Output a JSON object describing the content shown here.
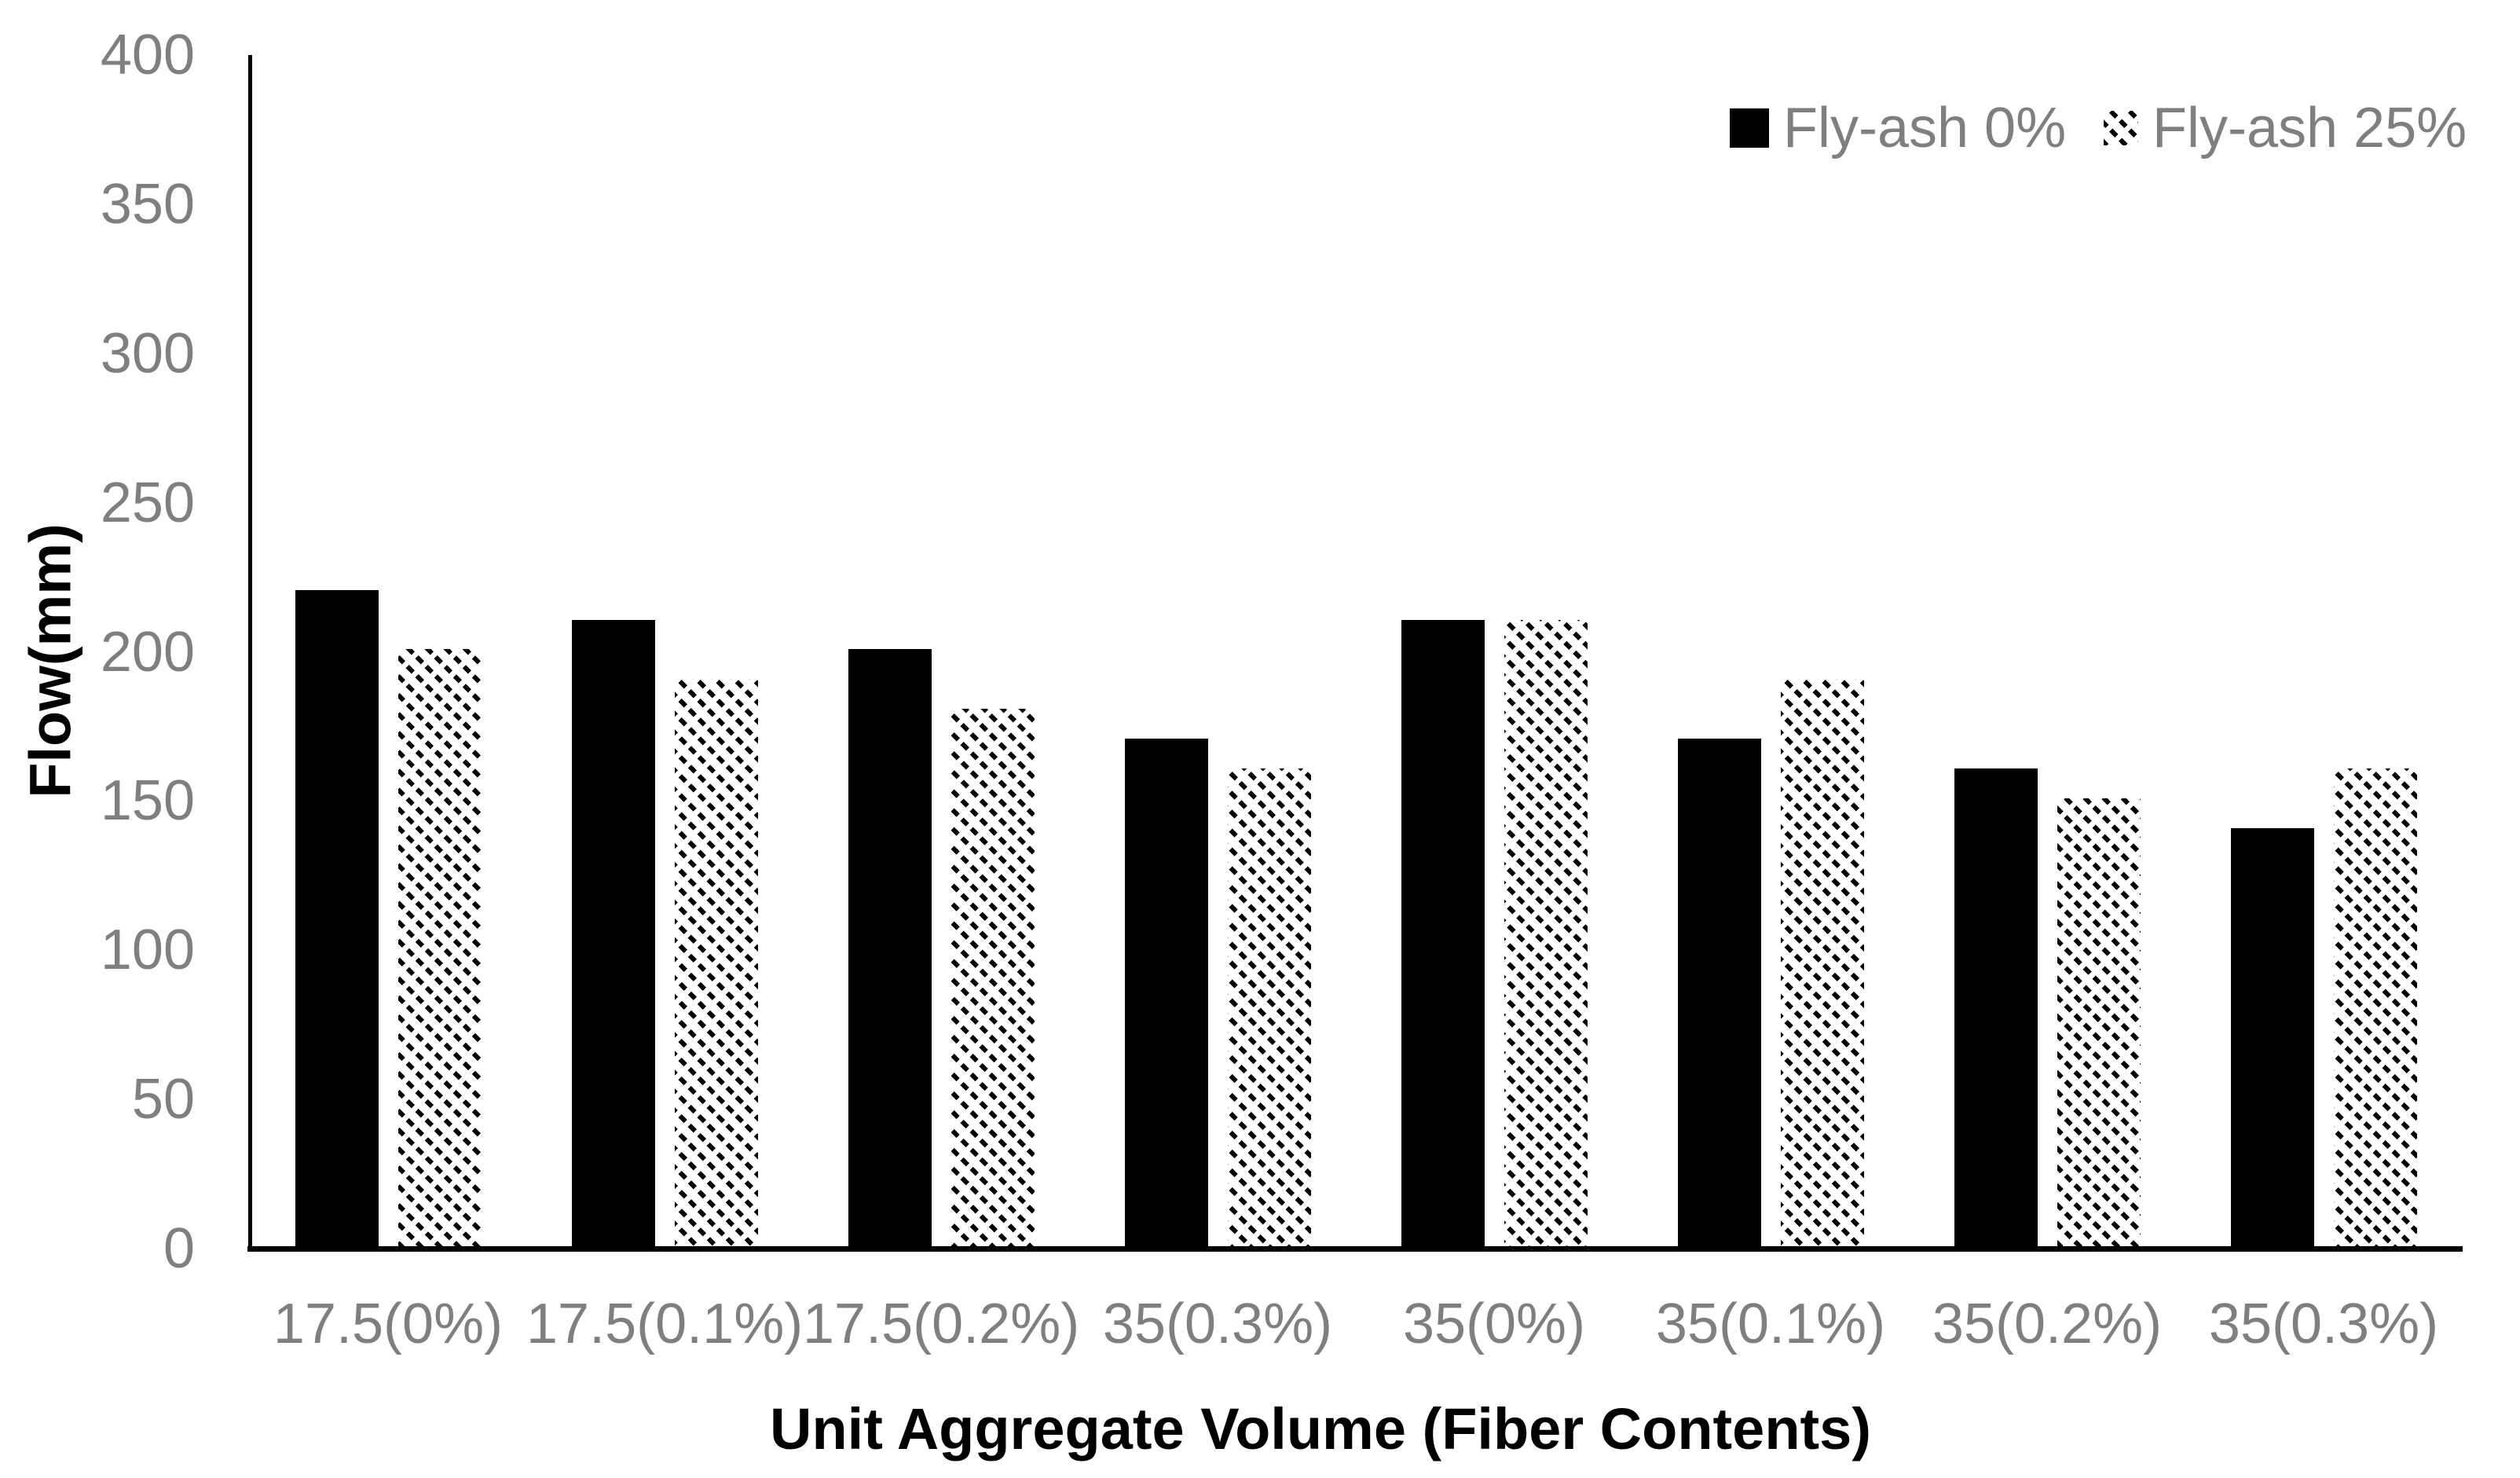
{
  "chart_data": {
    "type": "bar",
    "title": "",
    "xlabel": "Unit Aggregate Volume (Fiber Contents)",
    "ylabel": "Flow(mm)",
    "categories": [
      "17.5(0%)",
      "17.5(0.1%)",
      "17.5(0.2%)",
      "35(0.3%)",
      "35(0%)",
      "35(0.1%)",
      "35(0.2%)",
      "35(0.3%)"
    ],
    "series": [
      {
        "name": "Fly-ash 0%",
        "pattern": "solid-black",
        "color": "#000000",
        "values": [
          220,
          210,
          200,
          170,
          210,
          170,
          160,
          140
        ]
      },
      {
        "name": "Fly-ash 25%",
        "pattern": "diagonal-hatch-dotted",
        "color": "#000000",
        "values": [
          200,
          190,
          180,
          160,
          210,
          190,
          150,
          160
        ]
      }
    ],
    "y_ticks": [
      0,
      50,
      100,
      150,
      200,
      250,
      300,
      350,
      400
    ],
    "ylim": [
      0,
      400
    ],
    "grid": false,
    "legend_position": "top-right"
  },
  "colors": {
    "axis": "#000000",
    "tick_label": "#7f7f7f",
    "bar_fill": "#000000",
    "background": "#ffffff"
  }
}
